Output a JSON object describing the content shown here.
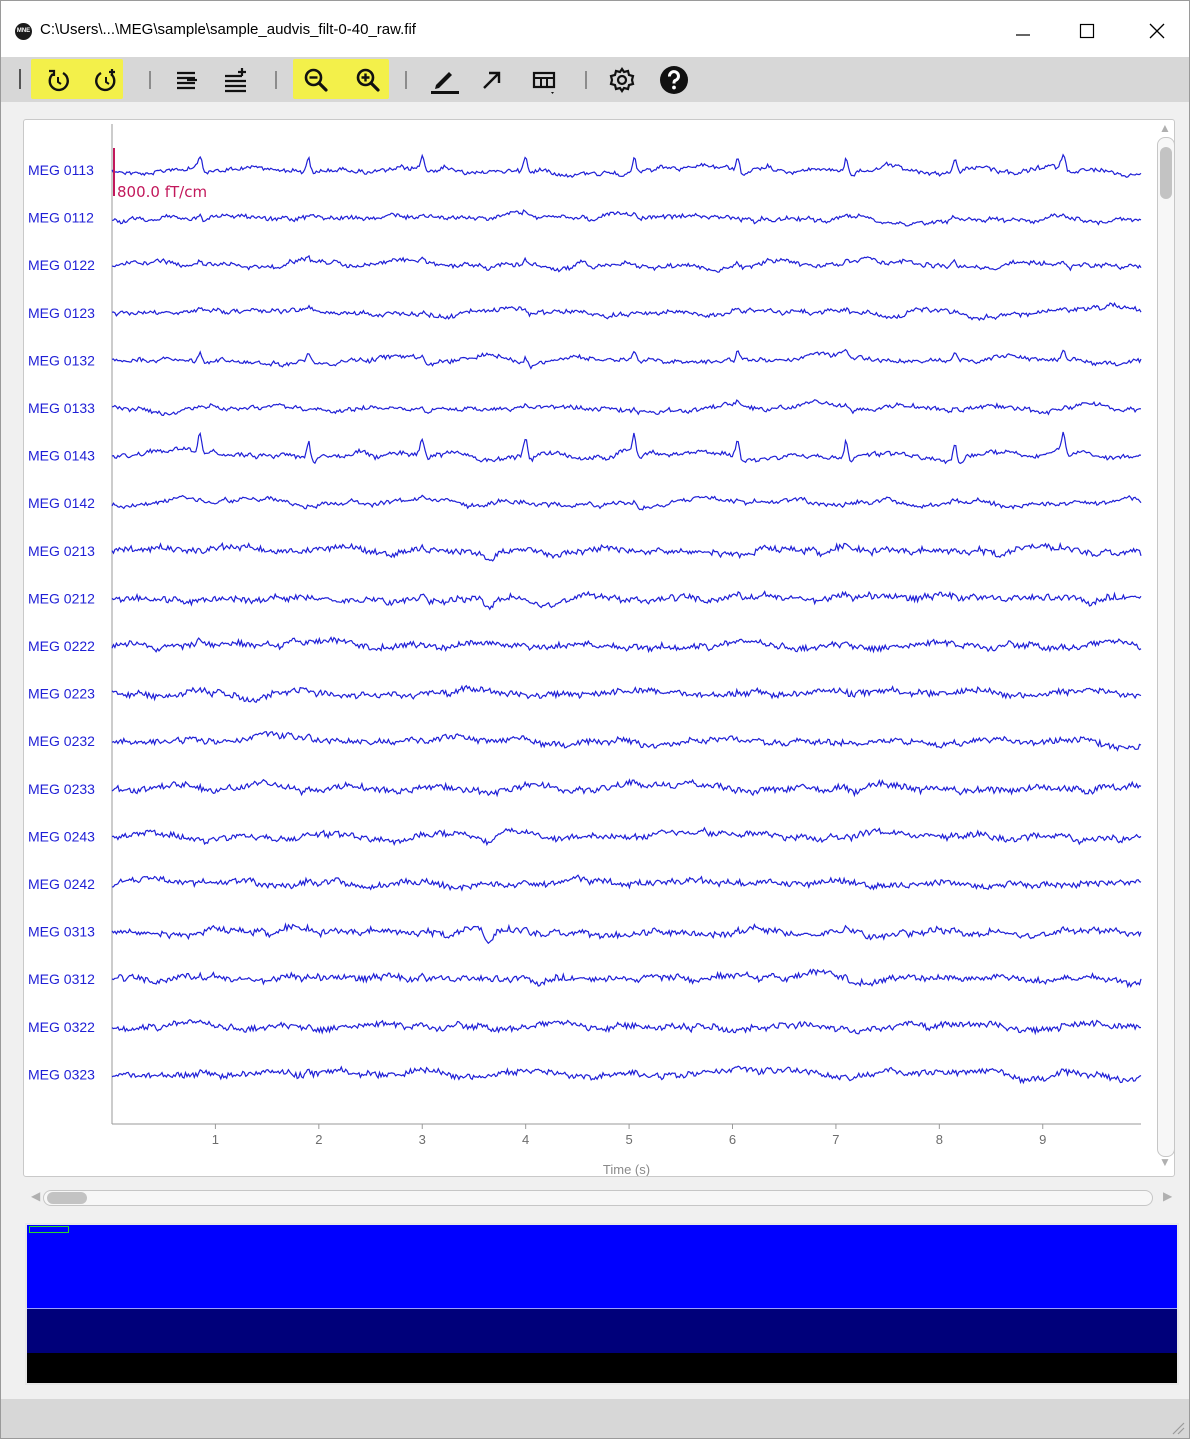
{
  "window": {
    "logo_text": "MNE",
    "title": "C:\\Users\\...\\MEG\\sample\\sample_audvis_filt-0-40_raw.fif"
  },
  "toolbar": {
    "buttons": [
      {
        "icon": "step-back-icon"
      },
      {
        "icon": "step-forward-icon"
      },
      {
        "icon": "fewer-channels-icon"
      },
      {
        "icon": "more-channels-icon"
      },
      {
        "icon": "zoom-out-icon"
      },
      {
        "icon": "zoom-in-icon"
      },
      {
        "icon": "annotation-pen-icon"
      },
      {
        "icon": "projection-arrow-icon"
      },
      {
        "icon": "butterfly-layout-icon"
      },
      {
        "icon": "settings-gear-icon"
      },
      {
        "icon": "help-icon"
      }
    ],
    "highlight_color": "#f3f04a"
  },
  "plot": {
    "trace_color": "#1f1fd6",
    "channels": [
      "MEG 0113",
      "MEG 0112",
      "MEG 0122",
      "MEG 0123",
      "MEG 0132",
      "MEG 0133",
      "MEG 0143",
      "MEG 0142",
      "MEG 0213",
      "MEG 0212",
      "MEG 0222",
      "MEG 0223",
      "MEG 0232",
      "MEG 0233",
      "MEG 0243",
      "MEG 0242",
      "MEG 0313",
      "MEG 0312",
      "MEG 0322",
      "MEG 0323"
    ],
    "x_ticks": [
      "1",
      "2",
      "3",
      "4",
      "5",
      "6",
      "7",
      "8",
      "9"
    ],
    "x_range": [
      0,
      9.95
    ],
    "xlabel": "Time (s)",
    "scale_bar": {
      "label": "800.0 fT/cm",
      "color": "#c2185b"
    }
  },
  "overview": {
    "colors": {
      "top": "#0000ff",
      "middle": "#00007a",
      "bottom": "#000000",
      "view_box": "#2bd62b"
    }
  }
}
